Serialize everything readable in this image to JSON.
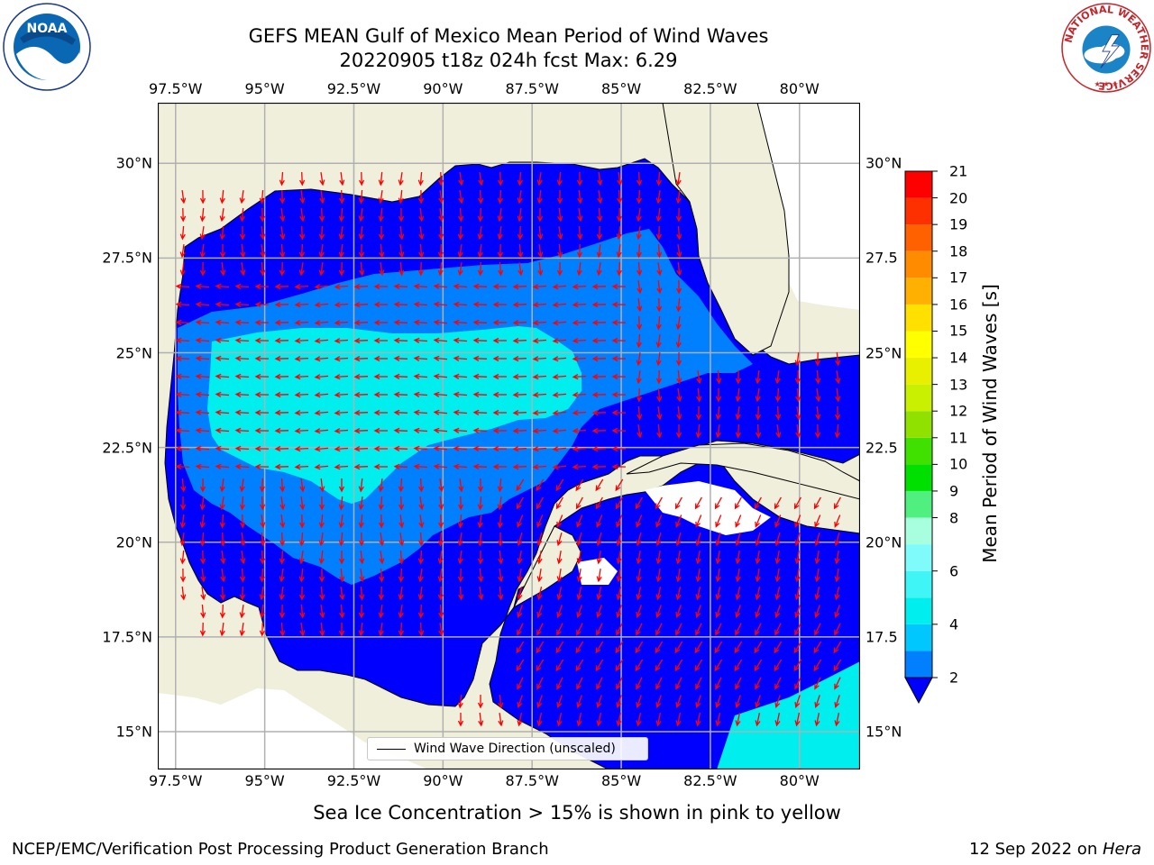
{
  "chart_data": {
    "type": "filled-contour map with wind-direction vectors",
    "title_line1": "GEFS MEAN Gulf of Mexico Mean Period of Wind Waves",
    "title_line2": "20220905 t18z 024h fcst   Max: 6.29",
    "subtitle": "Sea Ice Concentration > 15% is shown in pink to yellow",
    "lon_ticks": [
      "97.5°W",
      "95°W",
      "92.5°W",
      "90°W",
      "87.5°W",
      "85°W",
      "82.5°W",
      "80°W"
    ],
    "lat_ticks": [
      "30°N",
      "27.5°N",
      "25°N",
      "22.5°N",
      "20°N",
      "17.5°N",
      "15°N"
    ],
    "lat_ticks_right": [
      "30°N",
      "27.5",
      "25°N",
      "22.5",
      "20°N",
      "17.5",
      "15°N"
    ],
    "lon_range": [
      -98,
      -78.3
    ],
    "lat_range": [
      14,
      31.6
    ],
    "grid": true,
    "colorbar": {
      "label": "Mean Period of Wind Waves [s]",
      "levels": [
        2,
        3,
        4,
        5,
        6,
        7,
        8,
        9,
        10,
        11,
        12,
        13,
        14,
        15,
        16,
        17,
        18,
        19,
        20,
        21
      ],
      "tick_labels": [
        "2",
        "4",
        "6",
        "8",
        "9",
        "10",
        "11",
        "12",
        "13",
        "14",
        "15",
        "16",
        "17",
        "18",
        "19",
        "20",
        "21"
      ],
      "colors": [
        "#0080ff",
        "#00c8ff",
        "#00eeee",
        "#40f5f5",
        "#80fbfb",
        "#a8ffe0",
        "#50f080",
        "#00e000",
        "#40e000",
        "#90e000",
        "#c8f000",
        "#e8f000",
        "#ffff00",
        "#ffe000",
        "#ffb000",
        "#ff8c00",
        "#ff6000",
        "#ff3000",
        "#ff0000"
      ],
      "extend_min_color": "#0000ff"
    },
    "legend": "Wind Wave Direction (unscaled)",
    "colors": {
      "land": "#efefdb",
      "period_lt2": "#0000ff",
      "period_2_4": "#0080ff",
      "period_4_6": "#00eeee",
      "arrows": "#ff0000",
      "grid": "#b0b0b0"
    },
    "max_value": 6.29
  },
  "footer": {
    "left": "NCEP/EMC/Verification Post Processing Product Generation Branch",
    "right_date": "12 Sep 2022 on ",
    "right_machine": "Hera"
  },
  "logos": {
    "noaa_text": "NOAA",
    "nws_text": "NATIONAL WEATHER SERVICE"
  }
}
